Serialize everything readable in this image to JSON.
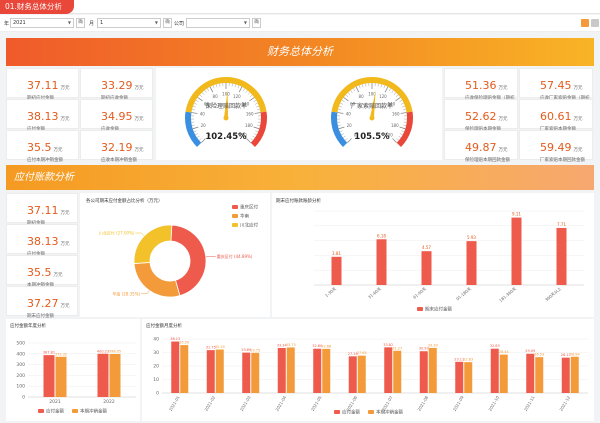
{
  "tab": {
    "label": "01.财务总体分析"
  },
  "filter": {
    "year_label": "年",
    "year_value": "2021",
    "month_label": "月",
    "month_value": "1",
    "company_label": "公司",
    "company_value": "",
    "btn": "确"
  },
  "banner1": {
    "title": "财务总体分析"
  },
  "left_kpis": [
    {
      "value": "37.11",
      "unit": "万元",
      "label": "期初应付金额"
    },
    {
      "value": "33.29",
      "unit": "万元",
      "label": "期初应收金额"
    },
    {
      "value": "38.13",
      "unit": "万元",
      "label": "应付金额"
    },
    {
      "value": "34.95",
      "unit": "万元",
      "label": "应收金额"
    },
    {
      "value": "35.5",
      "unit": "万元",
      "label": "应付本期冲销金额"
    },
    {
      "value": "32.19",
      "unit": "万元",
      "label": "应收本期冲销金额"
    }
  ],
  "gauges": [
    {
      "title": "保险理赔回款率",
      "value": "102.45%",
      "pct": 102.45
    },
    {
      "title": "厂家索赔回款率",
      "value": "105.5%",
      "pct": 105.5
    }
  ],
  "gauge_ticks": [
    "0",
    "20",
    "40",
    "60",
    "80",
    "100",
    "120",
    "140",
    "160",
    "180",
    "200"
  ],
  "right_kpis": [
    {
      "value": "51.36",
      "unit": "万元",
      "label": "应收保险理赔金额（期初"
    },
    {
      "value": "57.45",
      "unit": "万元",
      "label": "应收厂家索赔金额（期初"
    },
    {
      "value": "52.62",
      "unit": "万元",
      "label": "保险理赔本期金额"
    },
    {
      "value": "60.61",
      "unit": "万元",
      "label": "厂家索赔本期金额"
    },
    {
      "value": "49.87",
      "unit": "万元",
      "label": "保险理赔本期回款金额"
    },
    {
      "value": "59.49",
      "unit": "万元",
      "label": "厂家索赔本期回款金额"
    }
  ],
  "banner2": {
    "title": "应付账款分析"
  },
  "ap_kpis": [
    {
      "value": "37.11",
      "unit": "万元",
      "label": "期初金额"
    },
    {
      "value": "38.13",
      "unit": "万元",
      "label": "应付金额"
    },
    {
      "value": "35.5",
      "unit": "万元",
      "label": "本期冲销金额"
    },
    {
      "value": "37.27",
      "unit": "万元",
      "label": "期末应付金额"
    }
  ],
  "pie": {
    "title": "各公司期末应付金额占比分析（万元）",
    "legend": [
      "重庆区付",
      "华南",
      "川北应付"
    ],
    "labels": [
      "重庆区付 (44.89%)",
      "华南 (28.35%)",
      "川北应付 (27.00%)"
    ]
  },
  "aging": {
    "title": "期末应付账款账龄分析",
    "legend": "期末应付金额"
  },
  "yearly": {
    "title": "应付金额年度分析",
    "legend": [
      "应付金额",
      "本期冲销金额"
    ]
  },
  "monthly": {
    "title": "应付金额月度分析",
    "legend": [
      "应付金额",
      "本期冲销金额"
    ]
  },
  "colors": {
    "red": "#ee5a4b",
    "orange": "#f39a3a",
    "yellow": "#f3c12a",
    "accent": "#e8473a"
  },
  "chart_data": [
    {
      "type": "pie",
      "title": "各公司期末应付金额占比分析（万元）",
      "categories": [
        "重庆区付",
        "华南",
        "川北应付"
      ],
      "values": [
        44.89,
        28.35,
        27.0
      ],
      "legend": "top-right"
    },
    {
      "type": "bar",
      "title": "期末应付账款账龄分析",
      "categories": [
        "1-30天",
        "31-60天",
        "61-90天",
        "91-180天",
        "181-360天",
        "360天以上"
      ],
      "values": [
        3.81,
        6.18,
        4.57,
        5.93,
        9.11,
        7.71
      ],
      "series_name": "期末应付金额",
      "ylim": [
        0,
        10
      ]
    },
    {
      "type": "bar",
      "title": "应付金额年度分析",
      "categories": [
        "2021",
        "2022"
      ],
      "series": [
        {
          "name": "应付金额",
          "values": [
            387.81,
            400.23
          ]
        },
        {
          "name": "本期冲销金额",
          "values": [
            372.32,
            398.05
          ]
        }
      ],
      "ylim": [
        0,
        500
      ],
      "yticks": [
        "0",
        "100",
        "200",
        "300",
        "400",
        "500"
      ]
    },
    {
      "type": "bar",
      "title": "应付金额月度分析",
      "categories": [
        "2021-01",
        "2021-02",
        "2021-03",
        "2021-04",
        "2021-05",
        "2021-06",
        "2021-07",
        "2021-08",
        "2021-09",
        "2021-10",
        "2021-11",
        "2021-12"
      ],
      "series": [
        {
          "name": "应付金额",
          "values": [
            38.13,
            31.75,
            29.89,
            33.34,
            32.8,
            27.16,
            33.82,
            30.93,
            23.11,
            32.83,
            29.09,
            26.17
          ]
        },
        {
          "name": "本期冲销金额",
          "values": [
            35.5,
            32.19,
            29.75,
            33.73,
            32.66,
            27.65,
            31.27,
            33.39,
            22.83,
            28.44,
            26.53,
            26.84
          ]
        }
      ],
      "ylim": [
        0,
        40
      ],
      "yticks": [
        "0",
        "10",
        "20",
        "30",
        "40"
      ]
    }
  ]
}
